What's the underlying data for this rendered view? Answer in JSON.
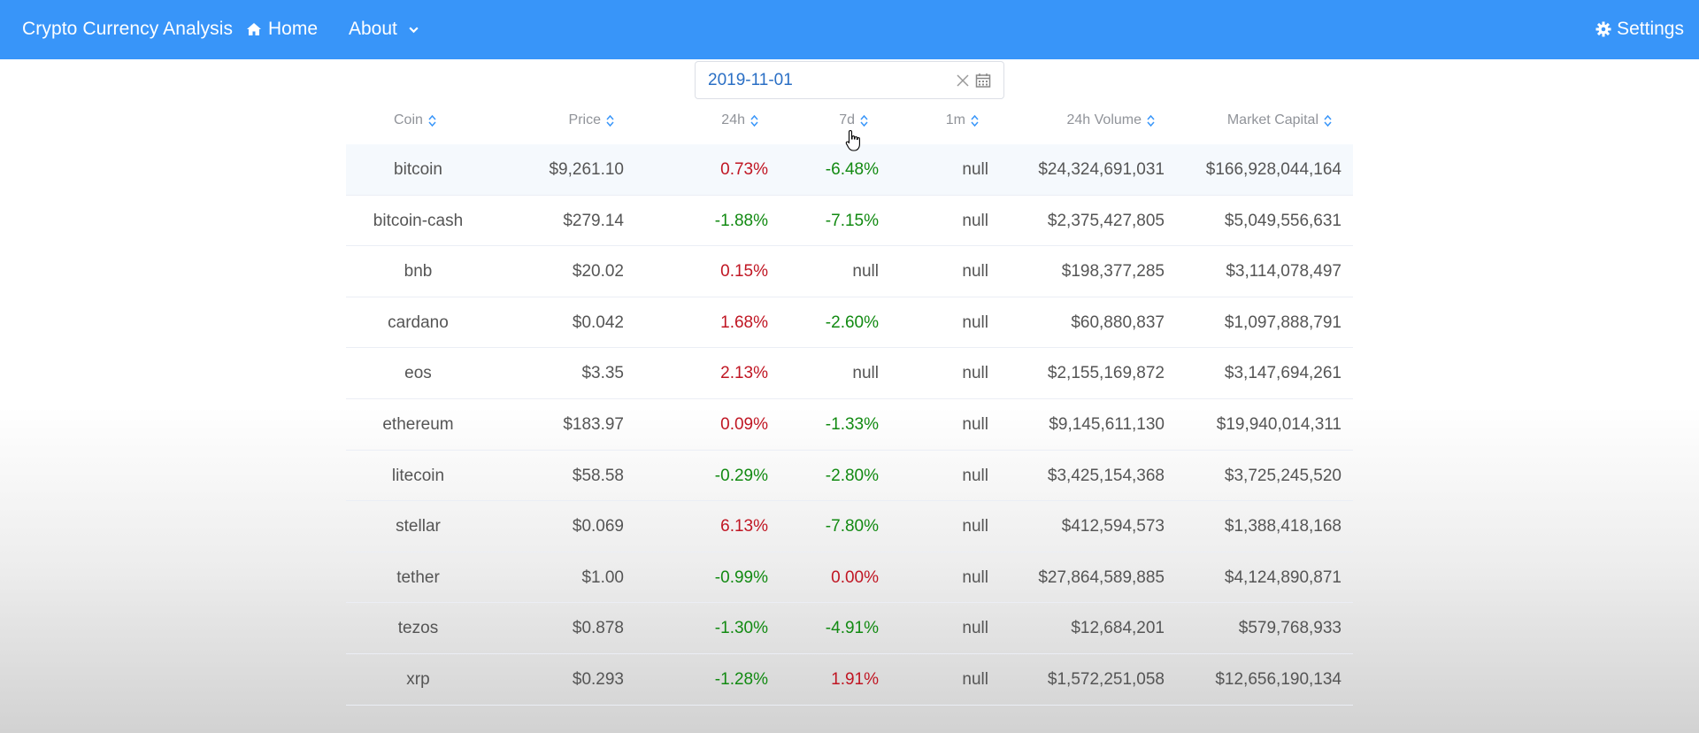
{
  "navbar": {
    "brand": "Crypto Currency Analysis",
    "home_label": "Home",
    "about_label": "About",
    "settings_label": "Settings",
    "background_color": "#3895f9"
  },
  "date_picker": {
    "value": "2019-11-01",
    "clear_icon": "close-icon",
    "calendar_icon": "calendar-icon"
  },
  "table": {
    "headers": {
      "coin": "Coin",
      "price": "Price",
      "change_24h": "24h",
      "change_7d": "7d",
      "change_1m": "1m",
      "volume_24h": "24h Volume",
      "market_cap": "Market Capital"
    },
    "rows": [
      {
        "coin": "bitcoin",
        "price": "$9,261.10",
        "change_24h": "0.73%",
        "change_7d": "-6.48%",
        "change_1m": "null",
        "volume_24h": "$24,324,691,031",
        "market_cap": "$166,928,044,164"
      },
      {
        "coin": "bitcoin-cash",
        "price": "$279.14",
        "change_24h": "-1.88%",
        "change_7d": "-7.15%",
        "change_1m": "null",
        "volume_24h": "$2,375,427,805",
        "market_cap": "$5,049,556,631"
      },
      {
        "coin": "bnb",
        "price": "$20.02",
        "change_24h": "0.15%",
        "change_7d": "null",
        "change_1m": "null",
        "volume_24h": "$198,377,285",
        "market_cap": "$3,114,078,497"
      },
      {
        "coin": "cardano",
        "price": "$0.042",
        "change_24h": "1.68%",
        "change_7d": "-2.60%",
        "change_1m": "null",
        "volume_24h": "$60,880,837",
        "market_cap": "$1,097,888,791"
      },
      {
        "coin": "eos",
        "price": "$3.35",
        "change_24h": "2.13%",
        "change_7d": "null",
        "change_1m": "null",
        "volume_24h": "$2,155,169,872",
        "market_cap": "$3,147,694,261"
      },
      {
        "coin": "ethereum",
        "price": "$183.97",
        "change_24h": "0.09%",
        "change_7d": "-1.33%",
        "change_1m": "null",
        "volume_24h": "$9,145,611,130",
        "market_cap": "$19,940,014,311"
      },
      {
        "coin": "litecoin",
        "price": "$58.58",
        "change_24h": "-0.29%",
        "change_7d": "-2.80%",
        "change_1m": "null",
        "volume_24h": "$3,425,154,368",
        "market_cap": "$3,725,245,520"
      },
      {
        "coin": "stellar",
        "price": "$0.069",
        "change_24h": "6.13%",
        "change_7d": "-7.80%",
        "change_1m": "null",
        "volume_24h": "$412,594,573",
        "market_cap": "$1,388,418,168"
      },
      {
        "coin": "tether",
        "price": "$1.00",
        "change_24h": "-0.99%",
        "change_7d": "0.00%",
        "change_1m": "null",
        "volume_24h": "$27,864,589,885",
        "market_cap": "$4,124,890,871"
      },
      {
        "coin": "tezos",
        "price": "$0.878",
        "change_24h": "-1.30%",
        "change_7d": "-4.91%",
        "change_1m": "null",
        "volume_24h": "$12,684,201",
        "market_cap": "$579,768,933"
      },
      {
        "coin": "xrp",
        "price": "$0.293",
        "change_24h": "-1.28%",
        "change_7d": "1.91%",
        "change_1m": "null",
        "volume_24h": "$1,572,251,058",
        "market_cap": "$12,656,190,134"
      }
    ]
  },
  "colors": {
    "positive": "#c01623",
    "negative": "#128a12",
    "header_text": "#909399",
    "sort_icon": "#3895f9"
  }
}
